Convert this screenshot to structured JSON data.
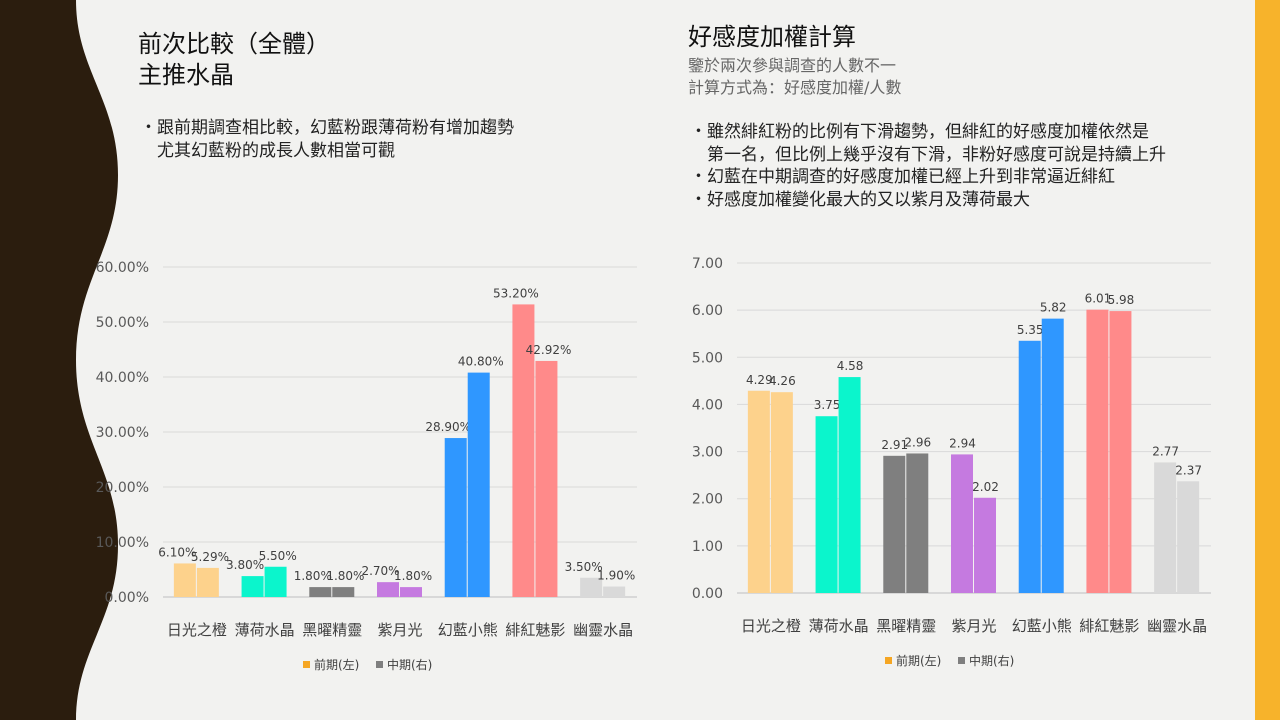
{
  "left": {
    "title1": "前次比較（全體）",
    "title2": "主推水晶",
    "bullets": [
      "・跟前期調查相比較，幻藍粉跟薄荷粉有增加趨勢",
      "　尤其幻藍粉的成長人數相當可觀"
    ]
  },
  "right": {
    "title": "好感度加權計算",
    "subtitles": [
      "鑒於兩次參與調查的人數不一",
      "計算方式為：好感度加權/人數"
    ],
    "bullets": [
      "・雖然緋紅粉的比例有下滑趨勢，但緋紅的好感度加權依然是",
      "　第一名，但比例上幾乎沒有下滑，非粉好感度可說是持續上升",
      "・幻藍在中期調查的好感度加權已經上升到非常逼近緋紅",
      "・好感度加權變化最大的又以紫月及薄荷最大"
    ]
  },
  "colors": {
    "bars": [
      "#FDD28C",
      "#0BF5CC",
      "#7F7F7F",
      "#C57AE0",
      "#2F97FF",
      "#FF8A8A",
      "#D9D9D9"
    ],
    "legend_prev": "#F5A623",
    "legend_mid": "#7F7F7F",
    "deco_left": "#2B1D0E",
    "deco_right": "#F7B32B"
  },
  "chart_data": [
    {
      "type": "bar",
      "categories": [
        "日光之橙",
        "薄荷水晶",
        "黑曜精靈",
        "紫月光",
        "幻藍小熊",
        "緋紅魅影",
        "幽靈水晶"
      ],
      "series": [
        {
          "name": "前期(左)",
          "values": [
            6.1,
            3.8,
            1.8,
            2.7,
            28.9,
            53.2,
            3.5
          ]
        },
        {
          "name": "中期(右)",
          "values": [
            5.29,
            5.5,
            1.8,
            1.8,
            40.8,
            42.92,
            1.9
          ]
        }
      ],
      "labels": [
        [
          "6.10%",
          "3.80%",
          "1.80%",
          "2.70%",
          "28.90%",
          "53.20%",
          "3.50%"
        ],
        [
          "5.29%",
          "5.50%",
          "1.80%",
          "1.80%",
          "40.80%",
          "42.92%",
          "1.90%"
        ]
      ],
      "yticks": [
        "0.00%",
        "10.00%",
        "20.00%",
        "30.00%",
        "40.00%",
        "50.00%",
        "60.00%"
      ],
      "ylim": [
        0,
        60
      ],
      "grid": true,
      "legend": "bottom"
    },
    {
      "type": "bar",
      "categories": [
        "日光之橙",
        "薄荷水晶",
        "黑曜精靈",
        "紫月光",
        "幻藍小熊",
        "緋紅魅影",
        "幽靈水晶"
      ],
      "series": [
        {
          "name": "前期(左)",
          "values": [
            4.29,
            3.75,
            2.91,
            2.94,
            5.35,
            6.01,
            2.77
          ]
        },
        {
          "name": "中期(右)",
          "values": [
            4.26,
            4.58,
            2.96,
            2.02,
            5.82,
            5.98,
            2.37
          ]
        }
      ],
      "labels": [
        [
          "4.29",
          "3.75",
          "2.91",
          "2.94",
          "5.35",
          "6.01",
          "2.77"
        ],
        [
          "4.26",
          "4.58",
          "2.96",
          "2.02",
          "5.82",
          "5.98",
          "2.37"
        ]
      ],
      "yticks": [
        "0.00",
        "1.00",
        "2.00",
        "3.00",
        "4.00",
        "5.00",
        "6.00",
        "7.00"
      ],
      "ylim": [
        0,
        7
      ],
      "grid": true,
      "legend": "bottom"
    }
  ]
}
